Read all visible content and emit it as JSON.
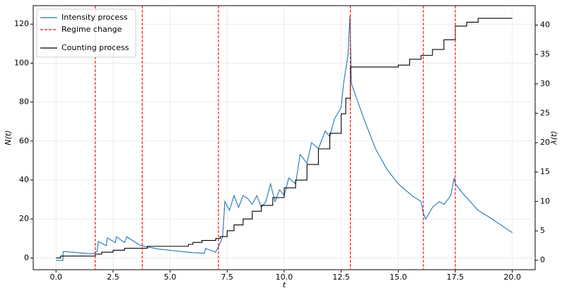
{
  "chart_data": {
    "type": "line",
    "xlabel": "t",
    "ylabel": "N(t)",
    "y2label": "λ(t)",
    "xlim": [
      -1,
      21
    ],
    "ylim": [
      -6,
      129.5
    ],
    "y2lim": [
      -1.6,
      43.3
    ],
    "xticks": [
      {
        "value": 0,
        "label": "0.0"
      },
      2.5,
      {
        "value": 5,
        "label": "5.0"
      },
      7.5,
      {
        "value": 10,
        "label": "10.0"
      },
      12.5,
      {
        "value": 15,
        "label": "15.0"
      },
      17.5,
      {
        "value": 20,
        "label": "20.0"
      }
    ],
    "yticks": [
      0,
      20,
      40,
      60,
      80,
      100,
      120
    ],
    "y2ticks": [
      0,
      5,
      10,
      15,
      20,
      25,
      30,
      35,
      40
    ],
    "grid": true,
    "legend": "upper left",
    "series": [
      {
        "name": "Intensity process",
        "color": "#1f77b4",
        "axis": "y2",
        "x": [
          0,
          0.3,
          0.31,
          1.6,
          1.8,
          1.85,
          2.2,
          2.25,
          2.6,
          2.65,
          3.0,
          3.1,
          3.7,
          4.5,
          5.5,
          6.0,
          6.5,
          6.55,
          7.0,
          7.2,
          7.3,
          7.4,
          7.6,
          7.8,
          8.0,
          8.2,
          8.4,
          8.6,
          8.8,
          9.0,
          9.2,
          9.4,
          9.6,
          9.8,
          10.0,
          10.2,
          10.5,
          10.7,
          11.0,
          11.2,
          11.5,
          11.8,
          12.0,
          12.2,
          12.5,
          12.6,
          12.8,
          12.88,
          12.95,
          13.5,
          14.0,
          14.5,
          15.0,
          15.3,
          15.6,
          16.0,
          16.1,
          16.2,
          16.5,
          16.8,
          17.0,
          17.3,
          17.45,
          17.5,
          17.8,
          18.5,
          19.0,
          19.5,
          20.0
        ],
        "values": [
          0,
          0,
          1.5,
          1.1,
          1.5,
          3.2,
          2.5,
          3.8,
          3.0,
          4.0,
          3.0,
          4.0,
          2.5,
          1.9,
          1.5,
          1.3,
          1.2,
          2.0,
          1.4,
          3.0,
          4.0,
          10,
          8.5,
          11,
          9,
          11,
          10.5,
          9.5,
          11,
          9,
          10,
          13,
          10,
          12,
          11,
          14,
          13,
          18,
          16.5,
          20,
          19,
          22,
          21,
          24,
          26,
          30,
          35,
          41.5,
          30,
          24,
          19,
          15.5,
          13,
          12,
          11,
          10,
          8,
          7,
          9,
          10,
          9.5,
          11,
          14,
          13,
          11.5,
          8.5,
          7.3,
          6,
          4.7
        ]
      },
      {
        "name": "Counting process",
        "color": "#000000",
        "axis": "y",
        "step": true,
        "x": [
          0,
          0.2,
          1.72,
          2.0,
          2.5,
          3.0,
          4.0,
          5.8,
          6.0,
          6.4,
          7.0,
          7.2,
          7.5,
          7.8,
          8.2,
          8.6,
          9.0,
          9.5,
          10.0,
          10.5,
          11.0,
          11.5,
          12.0,
          12.5,
          12.7,
          12.9,
          15.0,
          15.5,
          16.0,
          16.5,
          17.0,
          17.5,
          18.0,
          18.5,
          20.0
        ],
        "values": [
          0,
          1,
          2,
          3,
          4,
          5,
          6,
          7,
          8,
          9,
          10,
          11,
          14,
          17,
          20,
          24,
          27,
          31,
          36,
          40,
          48,
          56,
          64,
          74,
          82,
          98,
          99,
          102,
          104,
          107,
          112,
          119,
          121,
          123,
          123
        ]
      }
    ],
    "vlines": {
      "name": "Regime change",
      "color": "#ff0000",
      "x": [
        1.72,
        3.78,
        7.12,
        12.9,
        16.1,
        17.5
      ]
    }
  }
}
